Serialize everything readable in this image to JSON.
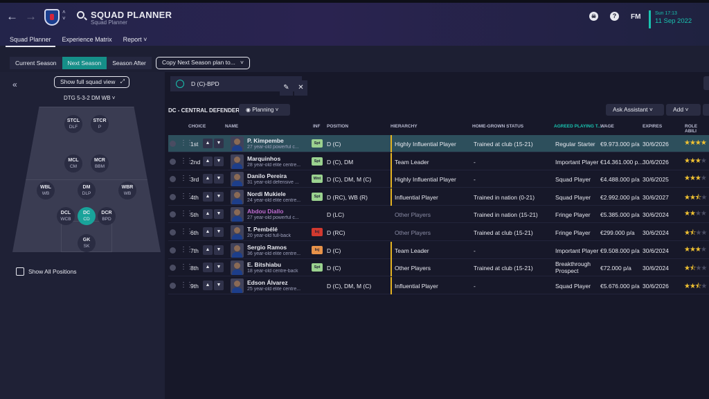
{
  "header": {
    "title": "SQUAD PLANNER",
    "subtitle": "Squad Planner",
    "fm_logo": "FM",
    "date_top": "Sun 17:13",
    "date_main": "11 Sep 2022",
    "tabs": [
      {
        "label": "Squad Planner",
        "active": true
      },
      {
        "label": "Experience Matrix",
        "active": false
      },
      {
        "label": "Report ˅",
        "active": false
      }
    ]
  },
  "season_bar": {
    "options": [
      "Current Season",
      "Next Season",
      "Season After"
    ],
    "active": 1
  },
  "copy_button": {
    "label": "Copy Next Season plan to..."
  },
  "left_panel": {
    "full_squad_label": "Show full squad view",
    "formation_label": "DTG 5-3-2 DM WB",
    "show_all_label": "Show All Positions",
    "positions": [
      {
        "code": "STCL",
        "role": "DLF"
      },
      {
        "code": "STCR",
        "role": "P"
      },
      {
        "code": "MCL",
        "role": "CM"
      },
      {
        "code": "MCR",
        "role": "BBM"
      },
      {
        "code": "WBL",
        "role": "WB"
      },
      {
        "code": "DM",
        "role": "DLP"
      },
      {
        "code": "WBR",
        "role": "WB"
      },
      {
        "code": "DCL",
        "role": "WCB"
      },
      {
        "code": "DC",
        "role": "CD"
      },
      {
        "code": "DCR",
        "role": "BPD"
      },
      {
        "code": "GK",
        "role": "SK"
      }
    ]
  },
  "position_select": {
    "value": "D (C)-BPD"
  },
  "section": {
    "title": "DC - CENTRAL DEFENDER",
    "planning_label": "Planning",
    "ask_label": "Ask Assistant",
    "add_label": "Add"
  },
  "table_headers": {
    "choice": "CHOICE",
    "name": "NAME",
    "inf": "INF",
    "position": "POSITION",
    "hierarchy": "HIERARCHY",
    "home_grown": "HOME-GROWN STATUS",
    "agreed": "AGREED PLAYING T...",
    "wage": "WAGE",
    "expires": "EXPIRES",
    "role_ability": "ROLE ABILI"
  },
  "colors": {
    "accent": "#19c3b0",
    "selected_row": "#2d4f5c",
    "hierarchy_bar": "#e6b422",
    "star": "#f1c232",
    "loan_name": "#c06cd0"
  },
  "players": [
    {
      "choice": "1st",
      "name": "P. Kimpembe",
      "desc": "27 year-old powerful c...",
      "inf": "Spt",
      "inf_color": "#9bd28f",
      "position": "D (C)",
      "hierarchy": "Highly Influential Player",
      "hier_bar": true,
      "hier_dim": false,
      "home_grown": "Trained at club (15-21)",
      "agreed": "Regular Starter",
      "wage": "€9.973.000 p/a",
      "expires": "30/6/2026",
      "stars": 4,
      "selected": true,
      "loan": false
    },
    {
      "choice": "2nd",
      "name": "Marquinhos",
      "desc": "28 year-old elite centre...",
      "inf": "Spt",
      "inf_color": "#9bd28f",
      "position": "D (C), DM",
      "hierarchy": "Team Leader",
      "hier_bar": true,
      "hier_dim": false,
      "home_grown": "-",
      "agreed": "Important Player",
      "wage": "€14.361.000 p...",
      "expires": "30/6/2026",
      "stars": 3,
      "selected": false,
      "loan": false
    },
    {
      "choice": "3rd",
      "name": "Danilo Pereira",
      "desc": "31 year-old defensive ...",
      "inf": "Wnt",
      "inf_color": "#9bd28f",
      "position": "D (C), DM, M (C)",
      "hierarchy": "Highly Influential Player",
      "hier_bar": true,
      "hier_dim": false,
      "home_grown": "-",
      "agreed": "Squad Player",
      "wage": "€4.488.000 p/a",
      "expires": "30/6/2025",
      "stars": 3,
      "selected": false,
      "loan": false
    },
    {
      "choice": "4th",
      "name": "Nordi Mukiele",
      "desc": "24 year-old elite centre...",
      "inf": "Spt",
      "inf_color": "#9bd28f",
      "position": "D (RC), WB (R)",
      "hierarchy": "Influential Player",
      "hier_bar": true,
      "hier_dim": false,
      "home_grown": "Trained in nation (0-21)",
      "agreed": "Squad Player",
      "wage": "€2.992.000 p/a",
      "expires": "30/6/2027",
      "stars": 2.5,
      "selected": false,
      "loan": false
    },
    {
      "choice": "5th",
      "name": "Abdou Diallo",
      "desc": "27 year-old powerful c...",
      "inf": "",
      "inf_color": "",
      "position": "D (LC)",
      "hierarchy": "Other Players",
      "hier_bar": false,
      "hier_dim": true,
      "home_grown": "Trained in nation (15-21)",
      "agreed": "Fringe Player",
      "wage": "€5.385.000 p/a",
      "expires": "30/6/2024",
      "stars": 2,
      "selected": false,
      "loan": true
    },
    {
      "choice": "6th",
      "name": "T. Pembélé",
      "desc": "20 year-old full-back",
      "inf": "Inj",
      "inf_color": "#d2392f",
      "position": "D (RC)",
      "hierarchy": "Other Players",
      "hier_bar": false,
      "hier_dim": true,
      "home_grown": "Trained at club (15-21)",
      "agreed": "Fringe Player",
      "wage": "€299.000 p/a",
      "expires": "30/6/2024",
      "stars": 1.5,
      "selected": false,
      "loan": false
    },
    {
      "choice": "7th",
      "name": "Sergio Ramos",
      "desc": "36 year-old elite centre...",
      "inf": "Inj",
      "inf_color": "#e8934a",
      "position": "D (C)",
      "hierarchy": "Team Leader",
      "hier_bar": true,
      "hier_dim": false,
      "home_grown": "-",
      "agreed": "Important Player",
      "wage": "€9.508.000 p/a",
      "expires": "30/6/2024",
      "stars": 3,
      "selected": false,
      "loan": false
    },
    {
      "choice": "8th",
      "name": "E. Bitshiabu",
      "desc": "18 year-old centre-back",
      "inf": "Spt",
      "inf_color": "#9bd28f",
      "position": "D (C)",
      "hierarchy": "Other Players",
      "hier_bar": true,
      "hier_dim": false,
      "home_grown": "Trained at club (15-21)",
      "agreed": "Breakthrough Prospect",
      "wage": "€72.000 p/a",
      "expires": "30/6/2024",
      "stars": 1.5,
      "selected": false,
      "loan": false
    },
    {
      "choice": "9th",
      "name": "Edson Álvarez",
      "desc": "25 year-old elite centre...",
      "inf": "",
      "inf_color": "",
      "position": "D (C), DM, M (C)",
      "hierarchy": "Influential Player",
      "hier_bar": true,
      "hier_dim": false,
      "home_grown": "-",
      "agreed": "Squad Player",
      "wage": "€5.676.000 p/a",
      "expires": "30/6/2026",
      "stars": 2.5,
      "selected": false,
      "loan": false
    }
  ]
}
